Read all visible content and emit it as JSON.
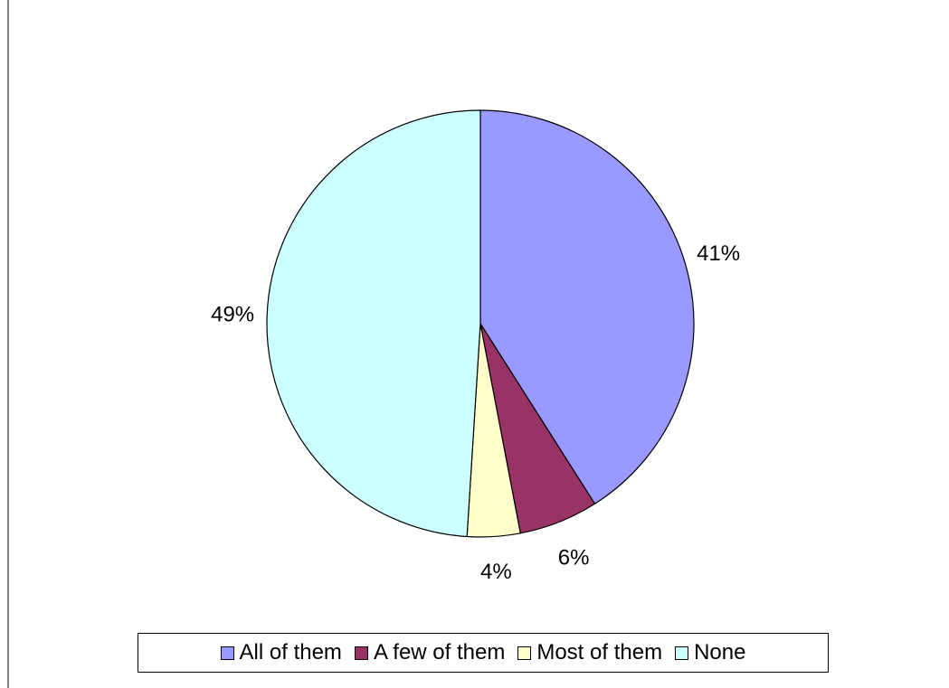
{
  "chart_data": {
    "type": "pie",
    "categories": [
      "All of them",
      "A few of them",
      "Most of them",
      "None"
    ],
    "values": [
      41,
      6,
      4,
      49
    ],
    "labels": [
      "41%",
      "6%",
      "4%",
      "49%"
    ],
    "colors": [
      "#9999ff",
      "#993366",
      "#ffffcc",
      "#ccffff"
    ],
    "start_angle": "12 o'clock",
    "direction": "clockwise",
    "legend_position": "bottom"
  }
}
